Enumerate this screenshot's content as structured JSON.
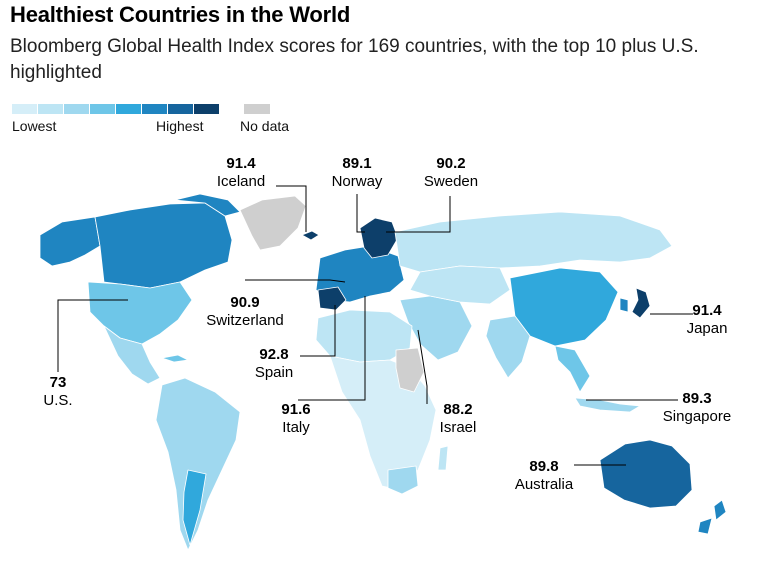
{
  "header": {
    "title": "Healthiest Countries in the World",
    "subtitle": "Bloomberg Global Health Index scores for 169 countries, with the top 10 plus U.S. highlighted"
  },
  "legend": {
    "low_label": "Lowest",
    "high_label": "Highest",
    "nodata_label": "No data",
    "scale_colors": [
      "#d5eef8",
      "#bde5f4",
      "#9fd8ef",
      "#6ec6e8",
      "#30a8dc",
      "#1f85c1",
      "#16659e",
      "#0d3f6a"
    ],
    "nodata_color": "#cfcfcf"
  },
  "countries": [
    {
      "name": "Iceland",
      "score": "91.4"
    },
    {
      "name": "Norway",
      "score": "89.1"
    },
    {
      "name": "Sweden",
      "score": "90.2"
    },
    {
      "name": "Switzerland",
      "score": "90.9"
    },
    {
      "name": "Japan",
      "score": "91.4"
    },
    {
      "name": "Spain",
      "score": "92.8"
    },
    {
      "name": "U.S.",
      "score": "73"
    },
    {
      "name": "Italy",
      "score": "91.6"
    },
    {
      "name": "Israel",
      "score": "88.2"
    },
    {
      "name": "Singapore",
      "score": "89.3"
    },
    {
      "name": "Australia",
      "score": "89.8"
    }
  ]
}
